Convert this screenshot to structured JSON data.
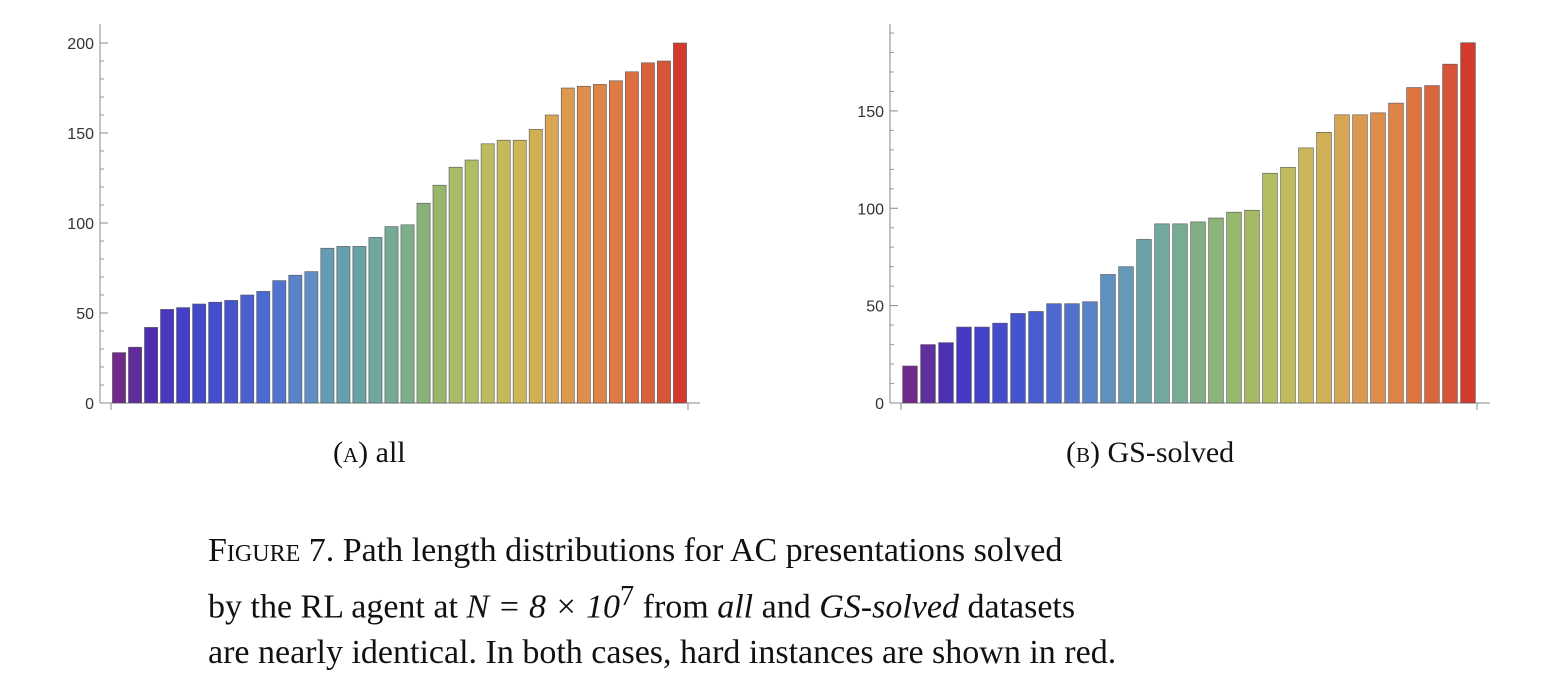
{
  "chart_data": [
    {
      "type": "bar",
      "ylim": [
        0,
        200
      ],
      "yticks": [
        0,
        50,
        100,
        150,
        200
      ],
      "values": [
        28,
        31,
        42,
        52,
        53,
        55,
        56,
        57,
        60,
        62,
        68,
        71,
        73,
        86,
        87,
        87,
        92,
        98,
        99,
        111,
        121,
        131,
        135,
        144,
        146,
        146,
        152,
        160,
        175,
        176,
        177,
        179,
        184,
        189,
        190,
        200
      ],
      "colors": [
        "#702a8a",
        "#612d9c",
        "#4f2fb0",
        "#4738c0",
        "#443fc6",
        "#4448ca",
        "#434ecd",
        "#4655ce",
        "#4a60cf",
        "#4d6ad0",
        "#5273cd",
        "#5a82c8",
        "#5e8ec2",
        "#649cb4",
        "#679fae",
        "#6aa3a7",
        "#70a79e",
        "#75aa95",
        "#7dae8a",
        "#88b27a",
        "#98b76c",
        "#a8bb66",
        "#b1bd62",
        "#bbbc5e",
        "#c4ba5b",
        "#cbb658",
        "#d2af55",
        "#d8a653",
        "#db9a50",
        "#de8f4c",
        "#df8548",
        "#de7a44",
        "#dc6e40",
        "#d9613b",
        "#d75536",
        "#d43a2c"
      ]
    },
    {
      "type": "bar",
      "ylim": [
        0,
        190
      ],
      "yticks": [
        0,
        50,
        100,
        150
      ],
      "values": [
        19,
        30,
        31,
        39,
        39,
        41,
        46,
        47,
        51,
        51,
        52,
        66,
        70,
        84,
        92,
        92,
        93,
        95,
        98,
        99,
        118,
        121,
        131,
        139,
        148,
        148,
        149,
        154,
        162,
        163,
        174,
        185
      ],
      "colors": [
        "#702a8a",
        "#5f2e9f",
        "#4d31b4",
        "#4639c2",
        "#4442c8",
        "#444bcc",
        "#4553ce",
        "#495dcf",
        "#4d68d0",
        "#5272cd",
        "#5a82c8",
        "#5e90c0",
        "#6599b5",
        "#6ba2aa",
        "#72a89e",
        "#78ab93",
        "#80af86",
        "#8bb37a",
        "#98b76e",
        "#a6ba66",
        "#b3bd61",
        "#bfbb5d",
        "#c9b759",
        "#d1af55",
        "#d7a653",
        "#db9a50",
        "#de8e4b",
        "#de8247",
        "#dd7442",
        "#da663c",
        "#d75536",
        "#d43a2c"
      ]
    }
  ],
  "subcaptions": {
    "a_label": "(a)",
    "a_text": "all",
    "b_label": "(b)",
    "b_text": "GS-solved"
  },
  "caption": {
    "l1_fig": "Figure 7.",
    "l1_text": " Path length distributions for AC presentations solved",
    "l2_a": "by the RL agent at ",
    "l2_math": "N = 8 × 10",
    "l2_exp": "7",
    "l2_b": " from ",
    "l2_all": "all",
    "l2_c": " and ",
    "l2_gs": "GS-solved",
    "l2_d": " datasets",
    "l3": "are nearly identical. In both cases, hard instances are shown in red."
  }
}
